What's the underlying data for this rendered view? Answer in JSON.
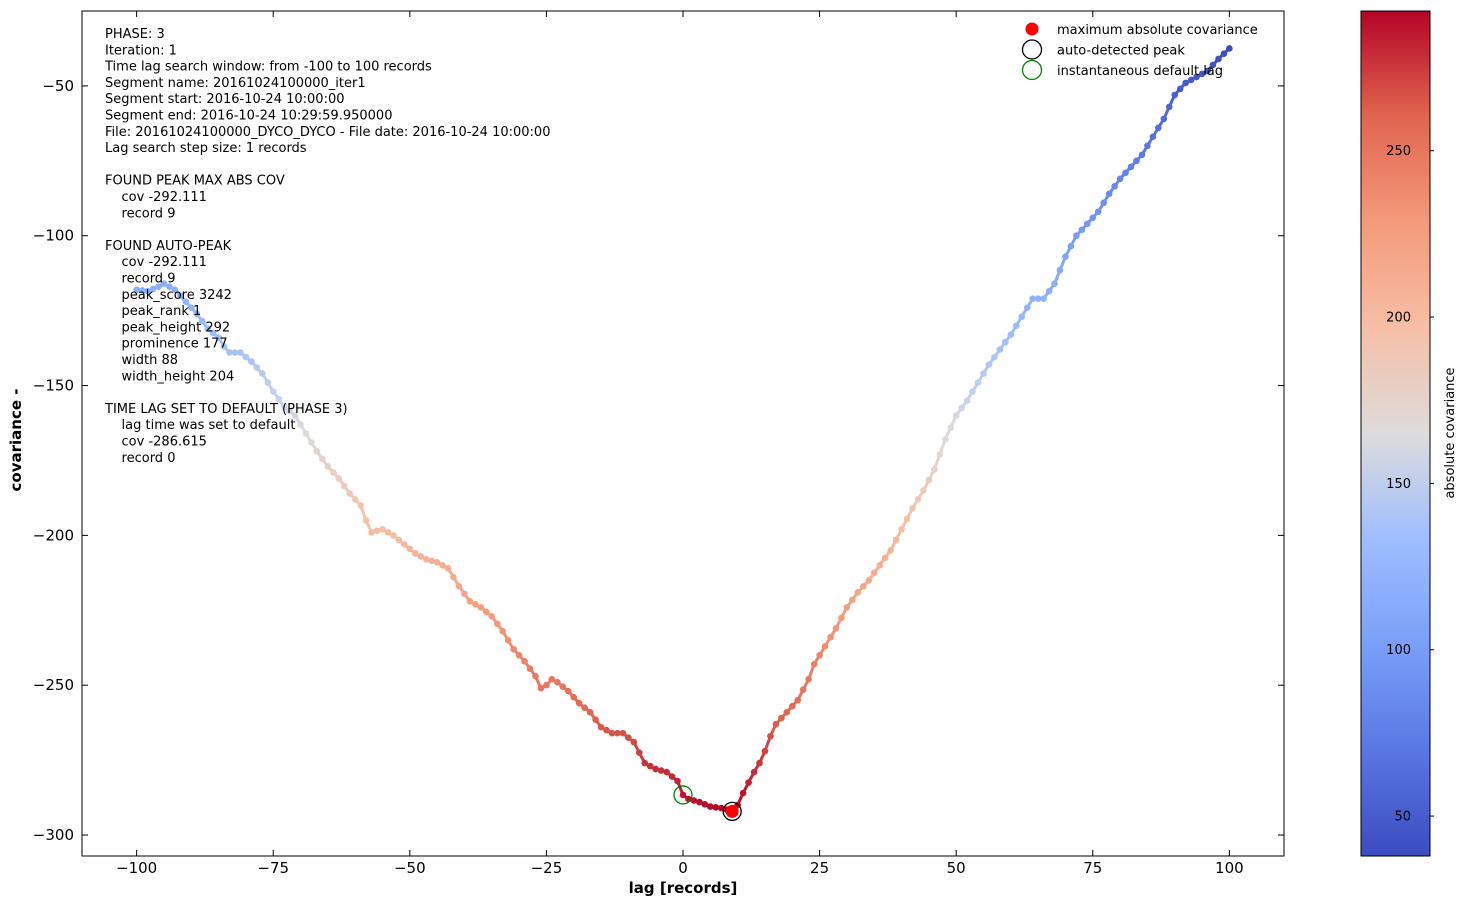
{
  "chart_data": {
    "type": "scatter",
    "xlabel": "lag [records]",
    "ylabel": "covariance  -",
    "xlim": [
      -110,
      110
    ],
    "ylim": [
      -307,
      -25
    ],
    "x_ticks": [
      -100,
      -75,
      -50,
      -25,
      0,
      25,
      50,
      75,
      100
    ],
    "x_tick_labels": [
      "−100",
      "−75",
      "−50",
      "−25",
      "0",
      "25",
      "50",
      "75",
      "100"
    ],
    "y_ticks": [
      -300,
      -250,
      -200,
      -150,
      -100,
      -50
    ],
    "y_tick_labels": [
      "−300",
      "−250",
      "−200",
      "−150",
      "−100",
      "−50"
    ],
    "grid": false,
    "legend_position": "top-right",
    "colorbar": {
      "label": "absolute covariance",
      "min": 38,
      "max": 292,
      "ticks": [
        50,
        100,
        150,
        200,
        250
      ],
      "tick_labels": [
        "50",
        "100",
        "150",
        "200",
        "250"
      ],
      "colormap": "coolwarm"
    },
    "legend": [
      {
        "label": "maximum absolute covariance",
        "marker": "filled-circle",
        "color": "#ff0000"
      },
      {
        "label": "auto-detected peak",
        "marker": "open-circle",
        "color": "#000000"
      },
      {
        "label": "instantaneous default lag",
        "marker": "open-circle",
        "color": "#008000"
      }
    ],
    "markers": {
      "max_abs_cov": {
        "x": 9,
        "y": -292.111,
        "color": "#ff0000"
      },
      "auto_peak": {
        "x": 9,
        "y": -292.111,
        "color": "#000000"
      },
      "default_lag": {
        "x": 0,
        "y": -286.615,
        "color": "#008000"
      }
    },
    "info_text": [
      "PHASE: 3",
      "Iteration: 1",
      "Time lag search window: from -100 to 100 records",
      "Segment name: 20161024100000_iter1",
      "Segment start: 2016-10-24 10:00:00",
      "Segment end: 2016-10-24 10:29:59.950000",
      "File: 20161024100000_DYCO_DYCO - File date: 2016-10-24 10:00:00",
      "Lag search step size: 1 records",
      "",
      "FOUND PEAK MAX ABS COV",
      "    cov -292.111",
      "    record 9",
      "",
      "FOUND AUTO-PEAK",
      "    cov -292.111",
      "    record 9",
      "    peak_score 3242",
      "    peak_rank 1",
      "    peak_height 292",
      "    prominence 177",
      "    width 88",
      "    width_height 204",
      "",
      "TIME LAG SET TO DEFAULT (PHASE 3)",
      "    lag time was set to default",
      "    cov -286.615",
      "    record 0"
    ],
    "series_keypoints": [
      [
        -100,
        -118
      ],
      [
        -98,
        -118.5
      ],
      [
        -96,
        -117
      ],
      [
        -95,
        -116
      ],
      [
        -93,
        -118
      ],
      [
        -91,
        -122
      ],
      [
        -89,
        -126
      ],
      [
        -87,
        -131
      ],
      [
        -85,
        -134
      ],
      [
        -84,
        -137
      ],
      [
        -83,
        -139
      ],
      [
        -81,
        -139
      ],
      [
        -79,
        -142
      ],
      [
        -77,
        -146
      ],
      [
        -75,
        -152
      ],
      [
        -73,
        -157
      ],
      [
        -71,
        -160
      ],
      [
        -69,
        -166
      ],
      [
        -67,
        -172
      ],
      [
        -65,
        -177
      ],
      [
        -63,
        -181
      ],
      [
        -61,
        -186
      ],
      [
        -59,
        -190
      ],
      [
        -58,
        -195
      ],
      [
        -57,
        -199
      ],
      [
        -55,
        -198
      ],
      [
        -53,
        -200
      ],
      [
        -51,
        -203
      ],
      [
        -49,
        -206
      ],
      [
        -47,
        -208
      ],
      [
        -45,
        -209
      ],
      [
        -43,
        -211
      ],
      [
        -41,
        -217
      ],
      [
        -39,
        -222
      ],
      [
        -37,
        -224
      ],
      [
        -35,
        -227
      ],
      [
        -33,
        -232
      ],
      [
        -31,
        -238
      ],
      [
        -29,
        -242
      ],
      [
        -27,
        -247
      ],
      [
        -26,
        -251
      ],
      [
        -25,
        -250
      ],
      [
        -24,
        -248
      ],
      [
        -23,
        -249
      ],
      [
        -21,
        -252
      ],
      [
        -19,
        -256
      ],
      [
        -17,
        -259
      ],
      [
        -15,
        -264
      ],
      [
        -13,
        -266
      ],
      [
        -11,
        -266
      ],
      [
        -9,
        -269
      ],
      [
        -7,
        -276
      ],
      [
        -5,
        -278
      ],
      [
        -3,
        -279
      ],
      [
        -1,
        -282
      ],
      [
        0,
        -286.615
      ],
      [
        1,
        -288
      ],
      [
        3,
        -289
      ],
      [
        5,
        -290.5
      ],
      [
        7,
        -291
      ],
      [
        9,
        -292.111
      ],
      [
        10,
        -290
      ],
      [
        11,
        -286
      ],
      [
        13,
        -279
      ],
      [
        14,
        -276
      ],
      [
        15,
        -272
      ],
      [
        16,
        -267
      ],
      [
        17,
        -263
      ],
      [
        19,
        -259
      ],
      [
        21,
        -255
      ],
      [
        23,
        -248
      ],
      [
        24,
        -243
      ],
      [
        26,
        -237
      ],
      [
        28,
        -231
      ],
      [
        30,
        -224
      ],
      [
        32,
        -219
      ],
      [
        34,
        -215
      ],
      [
        36,
        -210
      ],
      [
        38,
        -205
      ],
      [
        40,
        -198
      ],
      [
        42,
        -191
      ],
      [
        44,
        -185
      ],
      [
        46,
        -178
      ],
      [
        48,
        -168
      ],
      [
        50,
        -160
      ],
      [
        52,
        -155
      ],
      [
        54,
        -149
      ],
      [
        56,
        -143
      ],
      [
        58,
        -138
      ],
      [
        60,
        -133
      ],
      [
        62,
        -127
      ],
      [
        64,
        -121
      ],
      [
        66,
        -121
      ],
      [
        68,
        -116
      ],
      [
        70,
        -107
      ],
      [
        72,
        -100
      ],
      [
        74,
        -96
      ],
      [
        76,
        -92
      ],
      [
        78,
        -86
      ],
      [
        80,
        -81
      ],
      [
        82,
        -77
      ],
      [
        84,
        -73
      ],
      [
        86,
        -67
      ],
      [
        88,
        -61
      ],
      [
        90,
        -53
      ],
      [
        92,
        -49
      ],
      [
        94,
        -47
      ],
      [
        96,
        -45
      ],
      [
        98,
        -41
      ],
      [
        100,
        -37.5
      ]
    ]
  }
}
